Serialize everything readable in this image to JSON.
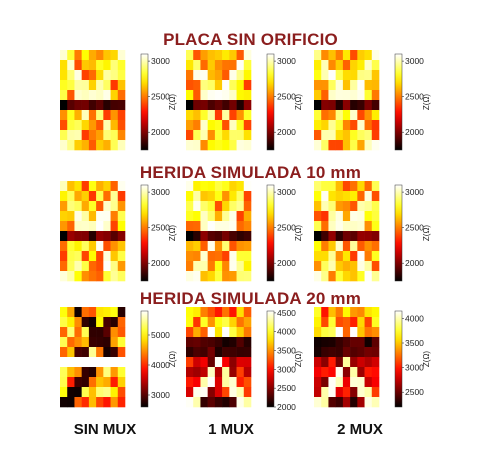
{
  "rows": [
    {
      "title": "PLACA SIN ORIFICIO"
    },
    {
      "title": "HERIDA SIMULADA 10 mm"
    },
    {
      "title": "HERIDA SIMULADA 20 mm"
    }
  ],
  "columns": [
    "SIN MUX",
    "1 MUX",
    "2 MUX"
  ],
  "colorbar_label": "Z(Ω)",
  "chart_data": [
    {
      "type": "heatmap",
      "title": "PLACA SIN ORIFICIO",
      "column": "SIN MUX",
      "colorbar_label": "Z(Ω)",
      "colorbar_ticks": [
        "2000",
        "2500",
        "3000"
      ],
      "zlim": [
        1750,
        3100
      ],
      "pattern": "X",
      "colormap": "hot"
    },
    {
      "type": "heatmap",
      "title": "PLACA SIN ORIFICIO",
      "column": "1 MUX",
      "colorbar_label": "Z(Ω)",
      "colorbar_ticks": [
        "2000",
        "2500",
        "3000"
      ],
      "zlim": [
        1750,
        3100
      ],
      "pattern": "X",
      "colormap": "hot"
    },
    {
      "type": "heatmap",
      "title": "PLACA SIN ORIFICIO",
      "column": "2 MUX",
      "colorbar_label": "Z(Ω)",
      "colorbar_ticks": [
        "2000",
        "2500",
        "3000"
      ],
      "zlim": [
        1750,
        3100
      ],
      "pattern": "X",
      "colormap": "hot"
    },
    {
      "type": "heatmap",
      "title": "HERIDA SIMULADA 10 mm",
      "column": "SIN MUX",
      "colorbar_label": "Z(Ω)",
      "colorbar_ticks": [
        "2000",
        "2500",
        "3000"
      ],
      "zlim": [
        1750,
        3100
      ],
      "pattern": "X",
      "colormap": "hot"
    },
    {
      "type": "heatmap",
      "title": "HERIDA SIMULADA 10 mm",
      "column": "1 MUX",
      "colorbar_label": "Z(Ω)",
      "colorbar_ticks": [
        "2000",
        "2500",
        "3000"
      ],
      "zlim": [
        1750,
        3100
      ],
      "pattern": "X",
      "colormap": "hot"
    },
    {
      "type": "heatmap",
      "title": "HERIDA SIMULADA 10 mm",
      "column": "2 MUX",
      "colorbar_label": "Z(Ω)",
      "colorbar_ticks": [
        "2000",
        "2500",
        "3000"
      ],
      "zlim": [
        1750,
        3100
      ],
      "pattern": "X",
      "colormap": "hot"
    },
    {
      "type": "heatmap",
      "title": "HERIDA SIMULADA 20 mm",
      "column": "SIN MUX",
      "colorbar_label": "Z(Ω)",
      "colorbar_ticks": [
        "3000",
        "4000",
        "5000"
      ],
      "zlim": [
        2600,
        5800
      ],
      "pattern": "hole",
      "colormap": "hot"
    },
    {
      "type": "heatmap",
      "title": "HERIDA SIMULADA 20 mm",
      "column": "1 MUX",
      "colorbar_label": "Z(Ω)",
      "colorbar_ticks": [
        "2000",
        "2500",
        "3000",
        "3500",
        "4000",
        "4500"
      ],
      "zlim": [
        2000,
        4550
      ],
      "pattern": "wedge",
      "colormap": "hot"
    },
    {
      "type": "heatmap",
      "title": "HERIDA SIMULADA 20 mm",
      "column": "2 MUX",
      "colorbar_label": "Z(Ω)",
      "colorbar_ticks": [
        "2500",
        "3000",
        "3500",
        "4000"
      ],
      "zlim": [
        2200,
        4150
      ],
      "pattern": "wedge",
      "colormap": "hot"
    }
  ]
}
